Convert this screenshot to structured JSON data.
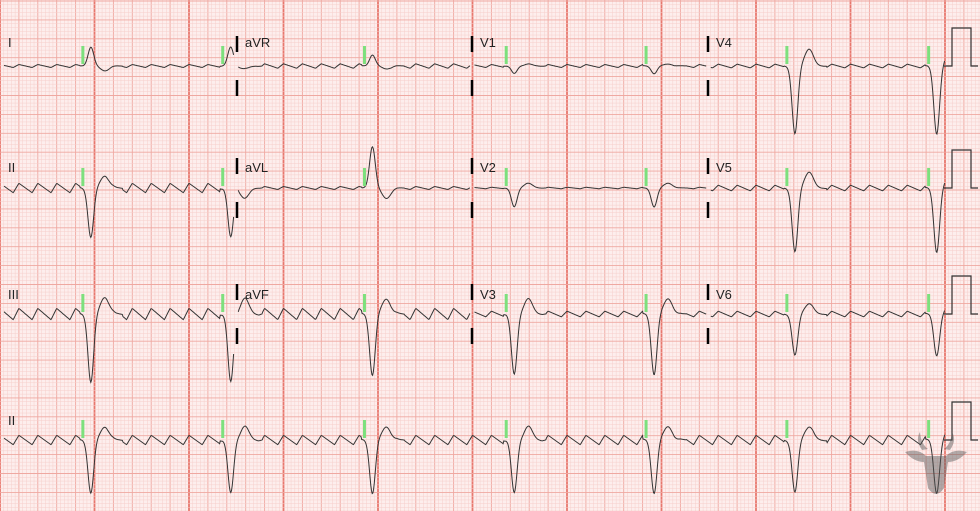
{
  "chart_data": {
    "type": "line",
    "title": "",
    "xlabel": "",
    "ylabel": "",
    "grid": true,
    "paper_speed_mm_per_s": 25,
    "gain_mm_per_mV": 10,
    "duration_s": 10,
    "pacing_spike_times_s": [
      0.88,
      2.36,
      3.86,
      5.36,
      6.84,
      8.33,
      9.83
    ],
    "flutter_wave_period_s": 0.2,
    "leads": [
      {
        "name": "I",
        "row": 0,
        "segment": [
          0,
          2.5
        ],
        "qrs_amplitude_mV": 0.5,
        "flutter_amplitude_mV": 0.08
      },
      {
        "name": "aVR",
        "row": 0,
        "segment": [
          2.5,
          5
        ],
        "qrs_amplitude_mV": 0.3,
        "flutter_amplitude_mV": 0.12
      },
      {
        "name": "V1",
        "row": 0,
        "segment": [
          5,
          7.5
        ],
        "qrs_amplitude_mV": -0.2,
        "flutter_amplitude_mV": 0.08
      },
      {
        "name": "V4",
        "row": 0,
        "segment": [
          7.5,
          10
        ],
        "qrs_amplitude_mV": -1.8,
        "flutter_amplitude_mV": 0.1
      },
      {
        "name": "II",
        "row": 1,
        "segment": [
          0,
          2.5
        ],
        "qrs_amplitude_mV": -1.3,
        "flutter_amplitude_mV": 0.25
      },
      {
        "name": "aVL",
        "row": 1,
        "segment": [
          2.5,
          5
        ],
        "qrs_amplitude_mV": 1.1,
        "flutter_amplitude_mV": 0.08
      },
      {
        "name": "V2",
        "row": 1,
        "segment": [
          5,
          7.5
        ],
        "qrs_amplitude_mV": -0.5,
        "flutter_amplitude_mV": 0.04
      },
      {
        "name": "V5",
        "row": 1,
        "segment": [
          7.5,
          10
        ],
        "qrs_amplitude_mV": -1.7,
        "flutter_amplitude_mV": 0.15
      },
      {
        "name": "III",
        "row": 2,
        "segment": [
          0,
          2.5
        ],
        "qrs_amplitude_mV": -1.8,
        "flutter_amplitude_mV": 0.3
      },
      {
        "name": "aVF",
        "row": 2,
        "segment": [
          2.5,
          5
        ],
        "qrs_amplitude_mV": -1.6,
        "flutter_amplitude_mV": 0.3
      },
      {
        "name": "V3",
        "row": 2,
        "segment": [
          5,
          7.5
        ],
        "qrs_amplitude_mV": -1.6,
        "flutter_amplitude_mV": 0.15
      },
      {
        "name": "V6",
        "row": 2,
        "segment": [
          7.5,
          10
        ],
        "qrs_amplitude_mV": -1.1,
        "flutter_amplitude_mV": 0.15
      },
      {
        "name": "II",
        "row": 3,
        "segment": [
          0,
          10
        ],
        "qrs_amplitude_mV": -1.4,
        "flutter_amplitude_mV": 0.25
      }
    ],
    "colors": {
      "paper": "#fdeeed",
      "minor_grid": "#f6cfcb",
      "major_grid": "#efa8a1",
      "second_grid": "#e8776d",
      "trace": "#333333",
      "pacing_spike": "#7de07d"
    }
  }
}
